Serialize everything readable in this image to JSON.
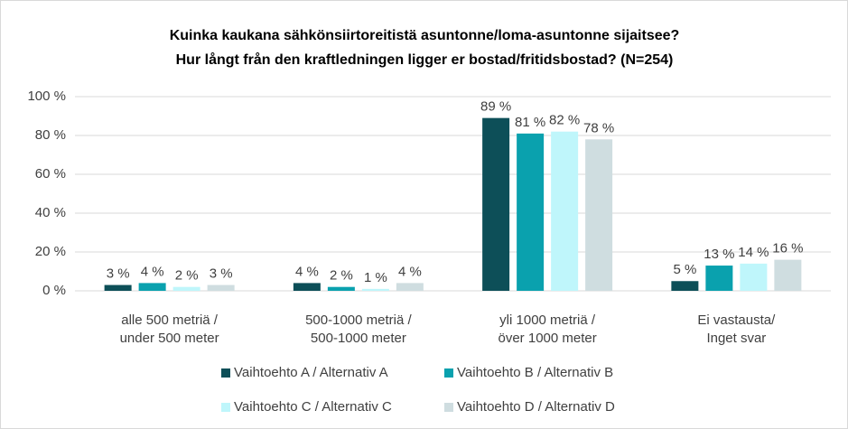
{
  "chart_data": {
    "type": "bar",
    "title": [
      "Kuinka kaukana sähkönsiirtoreitistä asuntonne/loma-asuntonne sijaitsee?",
      "Hur långt från den kraftledningen ligger er bostad/fritidsbostad? (N=254)"
    ],
    "categories": [
      [
        "alle 500 metriä /",
        "under 500 meter"
      ],
      [
        "500-1000 metriä /",
        "500-1000 meter"
      ],
      [
        "yli 1000 metriä /",
        "över 1000 meter"
      ],
      [
        "Ei vastausta/",
        "Inget svar"
      ]
    ],
    "series": [
      {
        "name": "Vaihtoehto A / Alternativ A",
        "color": "#0d4f58",
        "values": [
          3,
          4,
          89,
          5
        ],
        "value_labels": [
          "3 %",
          "4 %",
          "89 %",
          "5 %"
        ]
      },
      {
        "name": "Vaihtoehto B / Alternativ B",
        "color": "#0aa1ae",
        "values": [
          4,
          2,
          81,
          13
        ],
        "value_labels": [
          "4 %",
          "2 %",
          "81 %",
          "13 %"
        ]
      },
      {
        "name": "Vaihtoehto C / Alternativ C",
        "color": "#bff6fb",
        "values": [
          2,
          1,
          82,
          14
        ],
        "value_labels": [
          "2 %",
          "1 %",
          "82 %",
          "14 %"
        ]
      },
      {
        "name": "Vaihtoehto D / Alternativ D",
        "color": "#cfdde0",
        "values": [
          3,
          4,
          78,
          16
        ],
        "value_labels": [
          "3 %",
          "4 %",
          "78 %",
          "16 %"
        ]
      }
    ],
    "ylim": [
      0,
      100
    ],
    "yticks": [
      {
        "value": 0,
        "label": "0 %"
      },
      {
        "value": 20,
        "label": "20 %"
      },
      {
        "value": 40,
        "label": "40 %"
      },
      {
        "value": 60,
        "label": "60 %"
      },
      {
        "value": 80,
        "label": "80 %"
      },
      {
        "value": 100,
        "label": "100 %"
      }
    ],
    "grid": true,
    "legend": "bottom"
  }
}
